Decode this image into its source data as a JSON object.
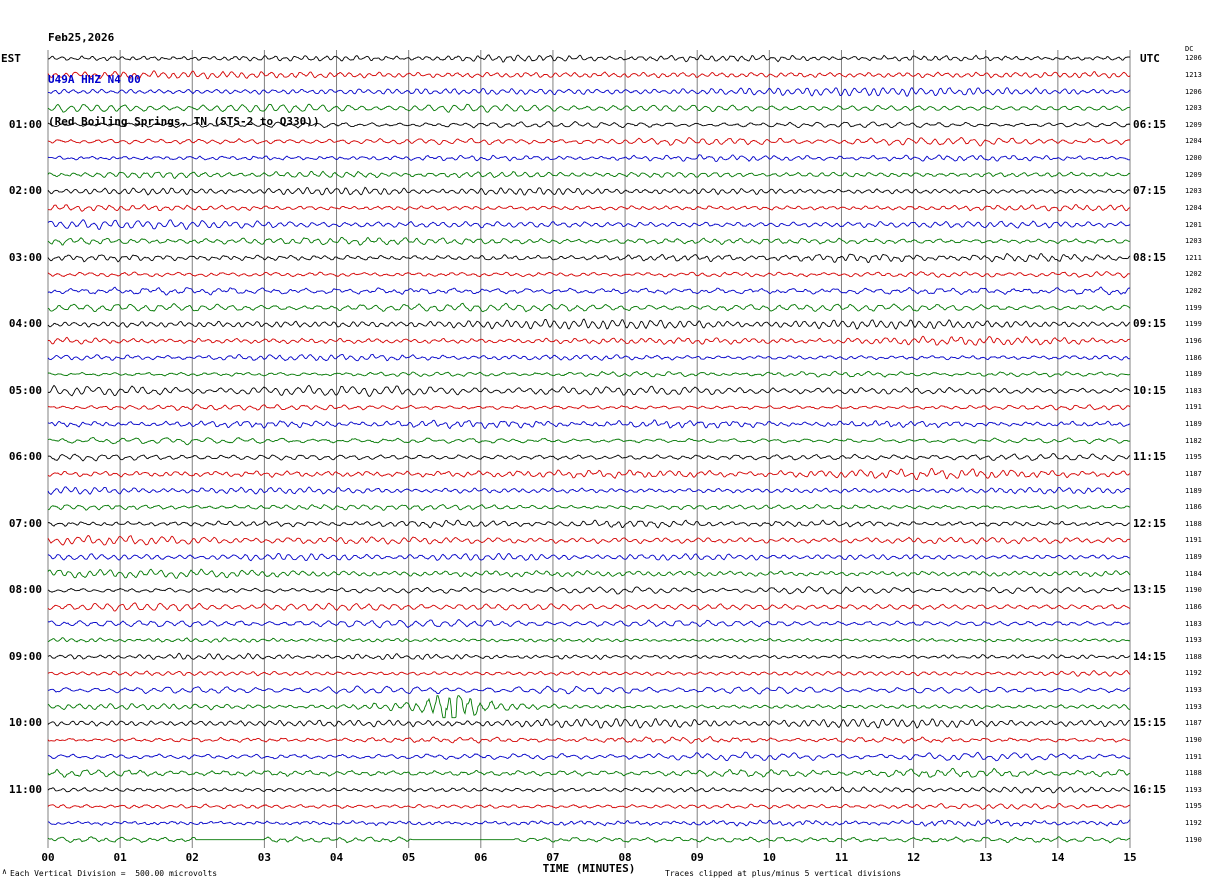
{
  "header": {
    "date": "Feb25,2026",
    "station": "U49A HHZ N4 00",
    "location": "(Red Boiling Springs, TN (STS-2 to Q330))"
  },
  "axes": {
    "left_title": "EST",
    "right_title": "UTC",
    "dc_title": "DC"
  },
  "footer": {
    "left_note": "Each Vertical Division =  500.00 microvolts",
    "right_note": "Traces clipped at plus/minus 5 vertical divisions",
    "corner_mark": "∧"
  },
  "chart_data": {
    "type": "line",
    "subtype": "helicorder-seismogram",
    "x_title": "TIME (MINUTES)",
    "x_range_minutes": [
      0,
      15
    ],
    "x_ticks": [
      "00",
      "01",
      "02",
      "03",
      "04",
      "05",
      "06",
      "07",
      "08",
      "09",
      "10",
      "11",
      "12",
      "13",
      "14",
      "15"
    ],
    "rows_per_hour": 4,
    "minutes_per_row": 15,
    "grid": "vertical-minute-lines",
    "trace_colors": [
      "#000000",
      "#d40000",
      "#0000c8",
      "#007700"
    ],
    "microvolts_per_division": 500,
    "clip_divisions": 5,
    "rows": [
      {
        "est": "",
        "utc": "",
        "dc": "1206"
      },
      {
        "est": "",
        "utc": "",
        "dc": "1213"
      },
      {
        "est": "",
        "utc": "",
        "dc": "1206"
      },
      {
        "est": "",
        "utc": "",
        "dc": "1203"
      },
      {
        "est": "01:00",
        "utc": "06:15",
        "dc": "1209"
      },
      {
        "est": "",
        "utc": "",
        "dc": "1204"
      },
      {
        "est": "",
        "utc": "",
        "dc": "1200"
      },
      {
        "est": "",
        "utc": "",
        "dc": "1209"
      },
      {
        "est": "02:00",
        "utc": "07:15",
        "dc": "1203"
      },
      {
        "est": "",
        "utc": "",
        "dc": "1204"
      },
      {
        "est": "",
        "utc": "",
        "dc": "1201"
      },
      {
        "est": "",
        "utc": "",
        "dc": "1203"
      },
      {
        "est": "03:00",
        "utc": "08:15",
        "dc": "1211"
      },
      {
        "est": "",
        "utc": "",
        "dc": "1202"
      },
      {
        "est": "",
        "utc": "",
        "dc": "1202"
      },
      {
        "est": "",
        "utc": "",
        "dc": "1199"
      },
      {
        "est": "04:00",
        "utc": "09:15",
        "dc": "1199"
      },
      {
        "est": "",
        "utc": "",
        "dc": "1196"
      },
      {
        "est": "",
        "utc": "",
        "dc": "1186"
      },
      {
        "est": "",
        "utc": "",
        "dc": "1189"
      },
      {
        "est": "05:00",
        "utc": "10:15",
        "dc": "1183"
      },
      {
        "est": "",
        "utc": "",
        "dc": "1191"
      },
      {
        "est": "",
        "utc": "",
        "dc": "1189"
      },
      {
        "est": "",
        "utc": "",
        "dc": "1182"
      },
      {
        "est": "06:00",
        "utc": "11:15",
        "dc": "1195"
      },
      {
        "est": "",
        "utc": "",
        "dc": "1187"
      },
      {
        "est": "",
        "utc": "",
        "dc": "1189"
      },
      {
        "est": "",
        "utc": "",
        "dc": "1186"
      },
      {
        "est": "07:00",
        "utc": "12:15",
        "dc": "1188"
      },
      {
        "est": "",
        "utc": "",
        "dc": "1191"
      },
      {
        "est": "",
        "utc": "",
        "dc": "1189"
      },
      {
        "est": "",
        "utc": "",
        "dc": "1184"
      },
      {
        "est": "08:00",
        "utc": "13:15",
        "dc": "1190"
      },
      {
        "est": "",
        "utc": "",
        "dc": "1186"
      },
      {
        "est": "",
        "utc": "",
        "dc": "1183"
      },
      {
        "est": "",
        "utc": "",
        "dc": "1193"
      },
      {
        "est": "09:00",
        "utc": "14:15",
        "dc": "1188"
      },
      {
        "est": "",
        "utc": "",
        "dc": "1192"
      },
      {
        "est": "",
        "utc": "",
        "dc": "1193"
      },
      {
        "est": "",
        "utc": "",
        "dc": "1193"
      },
      {
        "est": "10:00",
        "utc": "15:15",
        "dc": "1187"
      },
      {
        "est": "",
        "utc": "",
        "dc": "1190"
      },
      {
        "est": "",
        "utc": "",
        "dc": "1191"
      },
      {
        "est": "",
        "utc": "",
        "dc": "1188"
      },
      {
        "est": "11:00",
        "utc": "16:15",
        "dc": "1193"
      },
      {
        "est": "",
        "utc": "",
        "dc": "1195"
      },
      {
        "est": "",
        "utc": "",
        "dc": "1192"
      },
      {
        "est": "",
        "utc": "",
        "dc": "1190"
      }
    ],
    "events": [
      {
        "row": 39,
        "type": "burst",
        "minute": 5.6,
        "description": "large-amplitude transient on green trace before 10:00 EST"
      }
    ],
    "flat_segments": [
      {
        "row": 47,
        "start_minute": 2.05,
        "end_minute": 3.0
      },
      {
        "row": 47,
        "start_minute": 5.05,
        "end_minute": 6.45
      }
    ]
  }
}
